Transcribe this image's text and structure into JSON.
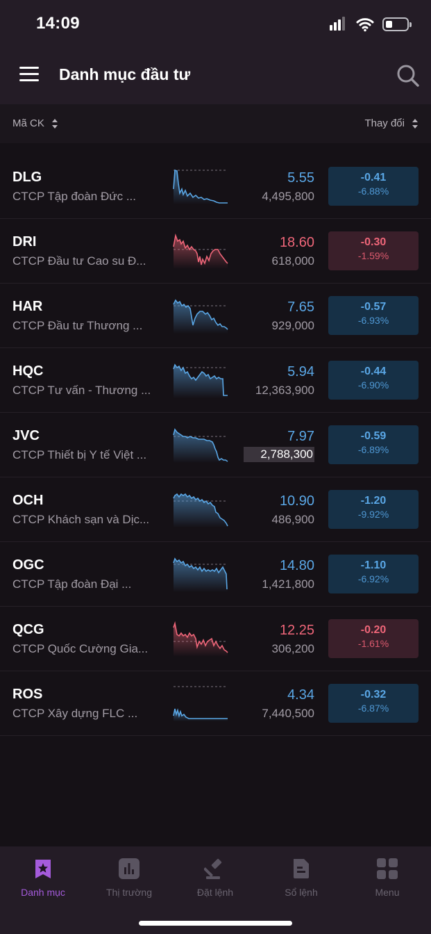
{
  "status_bar": {
    "time": "14:09"
  },
  "header": {
    "title": "Danh mục đầu tư"
  },
  "sort_bar": {
    "left_label": "Mã CK",
    "right_label": "Thay đổi"
  },
  "colors": {
    "up_blue": "#5aa7e6",
    "down_red": "#ef6679",
    "accent_purple": "#a55bdc"
  },
  "stocks": [
    {
      "symbol": "DLG",
      "name": "CTCP Tập đoàn Đức ...",
      "price": "5.55",
      "volume": "4,495,800",
      "change": "-0.41",
      "change_pct": "-6.88%",
      "tone": "blue"
    },
    {
      "symbol": "DRI",
      "name": "CTCP Đầu tư Cao su Đ...",
      "price": "18.60",
      "volume": "618,000",
      "change": "-0.30",
      "change_pct": "-1.59%",
      "tone": "red"
    },
    {
      "symbol": "HAR",
      "name": "CTCP Đầu tư Thương ...",
      "price": "7.65",
      "volume": "929,000",
      "change": "-0.57",
      "change_pct": "-6.93%",
      "tone": "blue"
    },
    {
      "symbol": "HQC",
      "name": "CTCP Tư vấn - Thương ...",
      "price": "5.94",
      "volume": "12,363,900",
      "change": "-0.44",
      "change_pct": "-6.90%",
      "tone": "blue"
    },
    {
      "symbol": "JVC",
      "name": "CTCP Thiết bị Y tế Việt ...",
      "price": "7.97",
      "volume": "2,788,300",
      "change": "-0.59",
      "change_pct": "-6.89%",
      "tone": "blue"
    },
    {
      "symbol": "OCH",
      "name": "CTCP Khách sạn và Dịc...",
      "price": "10.90",
      "volume": "486,900",
      "change": "-1.20",
      "change_pct": "-9.92%",
      "tone": "blue"
    },
    {
      "symbol": "OGC",
      "name": "CTCP Tập đoàn Đại ...",
      "price": "14.80",
      "volume": "1,421,800",
      "change": "-1.10",
      "change_pct": "-6.92%",
      "tone": "blue"
    },
    {
      "symbol": "QCG",
      "name": "CTCP Quốc Cường Gia...",
      "price": "12.25",
      "volume": "306,200",
      "change": "-0.20",
      "change_pct": "-1.61%",
      "tone": "red"
    },
    {
      "symbol": "ROS",
      "name": "CTCP Xây dựng FLC ...",
      "price": "4.34",
      "volume": "7,440,500",
      "change": "-0.32",
      "change_pct": "-6.87%",
      "tone": "blue"
    }
  ],
  "bottom_nav": [
    {
      "label": "Danh mục",
      "icon": "bookmark-star-icon",
      "active": true
    },
    {
      "label": "Thị trường",
      "icon": "bar-chart-icon",
      "active": false
    },
    {
      "label": "Đặt lệnh",
      "icon": "gavel-icon",
      "active": false
    },
    {
      "label": "Sổ lệnh",
      "icon": "document-icon",
      "active": false
    },
    {
      "label": "Menu",
      "icon": "grid-icon",
      "active": false
    }
  ]
}
